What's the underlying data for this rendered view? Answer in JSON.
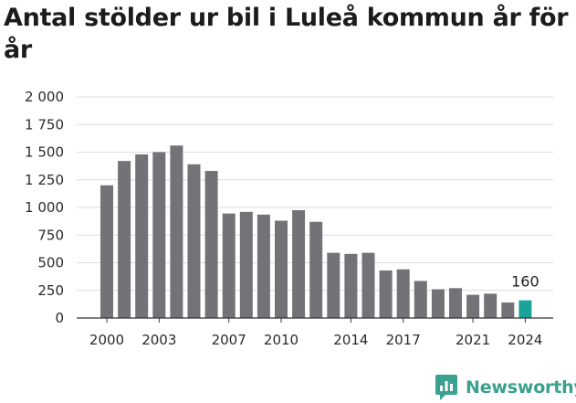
{
  "title": "Antal stölder ur bil i Luleå kommun år för år",
  "brand": {
    "name": "Newsworthy",
    "icon": "newsworthy-chat-bars-icon",
    "color": "#3aa08f"
  },
  "chart_data": {
    "type": "bar",
    "title": "Antal stölder ur bil i Luleå kommun år för år",
    "xlabel": "",
    "ylabel": "",
    "categories": [
      "2000",
      "2001",
      "2002",
      "2003",
      "2004",
      "2005",
      "2006",
      "2007",
      "2008",
      "2009",
      "2010",
      "2011",
      "2012",
      "2013",
      "2014",
      "2015",
      "2016",
      "2017",
      "2018",
      "2019",
      "2020",
      "2021",
      "2022",
      "2023",
      "2024"
    ],
    "values": [
      1200,
      1420,
      1480,
      1500,
      1560,
      1390,
      1330,
      945,
      960,
      935,
      880,
      975,
      870,
      590,
      580,
      590,
      430,
      440,
      335,
      260,
      270,
      210,
      220,
      140,
      160
    ],
    "ylim": [
      0,
      2000
    ],
    "yticks": [
      0,
      250,
      500,
      750,
      1000,
      1250,
      1500,
      1750,
      2000
    ],
    "ytick_labels": [
      "0",
      "250",
      "500",
      "750",
      "1 000",
      "1 250",
      "1 500",
      "1 750",
      "2 000"
    ],
    "xtick_labels": [
      "2000",
      "2003",
      "2007",
      "2010",
      "2014",
      "2017",
      "2021",
      "2024"
    ],
    "grid": true,
    "bar_color": "#737277",
    "highlight_color": "#1aa398",
    "highlight_category": "2024",
    "annotations": [
      {
        "category": "2024",
        "label": "160"
      }
    ]
  }
}
